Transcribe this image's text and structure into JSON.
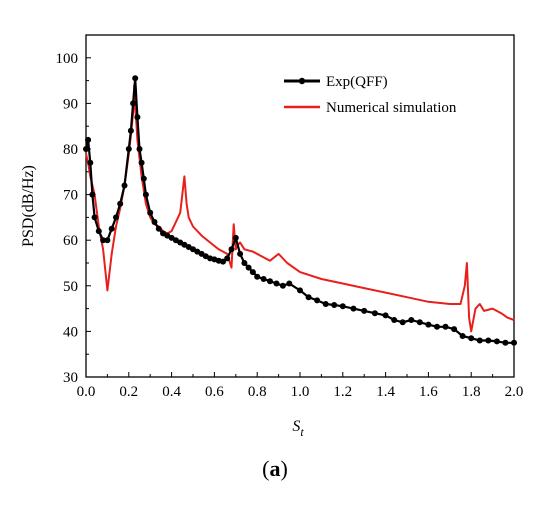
{
  "chart_data": {
    "type": "line",
    "xlabel_main": "S",
    "xlabel_sub": "t",
    "ylabel": "PSD(dB/Hz)",
    "xlim": [
      0.0,
      2.0
    ],
    "ylim": [
      30,
      105
    ],
    "x_ticks": [
      0.0,
      0.2,
      0.4,
      0.6,
      0.8,
      1.0,
      1.2,
      1.4,
      1.6,
      1.8,
      2.0
    ],
    "x_tick_labels": [
      "0.0",
      "0.2",
      "0.4",
      "0.6",
      "0.8",
      "1.0",
      "1.2",
      "1.4",
      "1.6",
      "1.8",
      "2.0"
    ],
    "y_ticks": [
      30,
      40,
      50,
      60,
      70,
      80,
      90,
      100
    ],
    "y_tick_labels": [
      "30",
      "40",
      "50",
      "60",
      "70",
      "80",
      "90",
      "100"
    ],
    "grid": false,
    "legend_position": "top-right",
    "series": [
      {
        "name": "Exp(QFF)",
        "color": "#000000",
        "marker": "circle",
        "x": [
          0.0,
          0.01,
          0.02,
          0.03,
          0.04,
          0.06,
          0.08,
          0.1,
          0.12,
          0.14,
          0.16,
          0.18,
          0.2,
          0.21,
          0.22,
          0.23,
          0.24,
          0.25,
          0.26,
          0.27,
          0.28,
          0.3,
          0.32,
          0.34,
          0.36,
          0.38,
          0.4,
          0.42,
          0.44,
          0.46,
          0.48,
          0.5,
          0.52,
          0.54,
          0.56,
          0.58,
          0.6,
          0.62,
          0.64,
          0.66,
          0.68,
          0.7,
          0.72,
          0.74,
          0.76,
          0.78,
          0.8,
          0.83,
          0.86,
          0.89,
          0.92,
          0.95,
          1.0,
          1.04,
          1.08,
          1.12,
          1.16,
          1.2,
          1.25,
          1.3,
          1.35,
          1.4,
          1.44,
          1.48,
          1.52,
          1.56,
          1.6,
          1.64,
          1.68,
          1.72,
          1.76,
          1.8,
          1.84,
          1.88,
          1.92,
          1.96,
          2.0
        ],
        "y": [
          80.0,
          82.0,
          77.0,
          70.0,
          65.0,
          62.0,
          60.0,
          60.0,
          62.5,
          65.0,
          68.0,
          72.0,
          80.0,
          84.0,
          90.0,
          95.5,
          87.0,
          80.0,
          77.0,
          73.5,
          70.0,
          66.0,
          64.0,
          62.5,
          61.5,
          61.0,
          60.5,
          60.0,
          59.5,
          59.0,
          58.5,
          58.0,
          57.5,
          57.0,
          56.5,
          56.0,
          55.8,
          55.5,
          55.3,
          56.0,
          58.0,
          60.5,
          57.0,
          55.0,
          54.0,
          53.0,
          52.0,
          51.5,
          51.0,
          50.5,
          50.0,
          50.5,
          49.0,
          47.5,
          46.8,
          46.0,
          45.8,
          45.5,
          45.0,
          44.5,
          44.0,
          43.5,
          42.5,
          42.0,
          42.5,
          42.0,
          41.5,
          41.0,
          41.0,
          40.5,
          39.0,
          38.5,
          38.0,
          38.0,
          37.8,
          37.5,
          37.5
        ]
      },
      {
        "name": "Numerical simulation",
        "color": "#e8201c",
        "marker": "none",
        "x": [
          0.0,
          0.01,
          0.02,
          0.04,
          0.06,
          0.08,
          0.1,
          0.12,
          0.14,
          0.16,
          0.18,
          0.2,
          0.21,
          0.22,
          0.225,
          0.23,
          0.235,
          0.24,
          0.25,
          0.26,
          0.28,
          0.3,
          0.32,
          0.34,
          0.36,
          0.38,
          0.4,
          0.42,
          0.44,
          0.45,
          0.46,
          0.47,
          0.48,
          0.5,
          0.54,
          0.58,
          0.62,
          0.66,
          0.68,
          0.69,
          0.7,
          0.71,
          0.72,
          0.74,
          0.78,
          0.82,
          0.86,
          0.9,
          0.94,
          1.0,
          1.1,
          1.2,
          1.3,
          1.4,
          1.5,
          1.6,
          1.7,
          1.75,
          1.77,
          1.78,
          1.79,
          1.8,
          1.82,
          1.84,
          1.86,
          1.9,
          1.94,
          1.97,
          2.0
        ],
        "y": [
          79.0,
          77.0,
          74.0,
          70.0,
          63.0,
          58.0,
          49.0,
          57.0,
          63.0,
          67.0,
          72.0,
          79.0,
          83.0,
          88.0,
          94.0,
          89.0,
          86.0,
          82.0,
          78.0,
          74.0,
          68.0,
          65.0,
          63.5,
          63.0,
          62.0,
          61.5,
          62.0,
          64.0,
          66.0,
          70.0,
          74.0,
          68.0,
          65.0,
          63.0,
          61.0,
          59.5,
          58.0,
          57.0,
          54.0,
          63.5,
          58.0,
          59.0,
          59.5,
          58.0,
          57.5,
          56.5,
          55.5,
          57.0,
          55.0,
          53.0,
          51.5,
          50.5,
          49.5,
          48.5,
          47.5,
          46.5,
          46.0,
          46.0,
          50.0,
          55.0,
          43.0,
          40.0,
          45.0,
          46.0,
          44.5,
          45.0,
          44.0,
          43.0,
          42.5
        ]
      }
    ]
  },
  "panel_label": {
    "open": "(",
    "letter": "a",
    "close": ")"
  }
}
